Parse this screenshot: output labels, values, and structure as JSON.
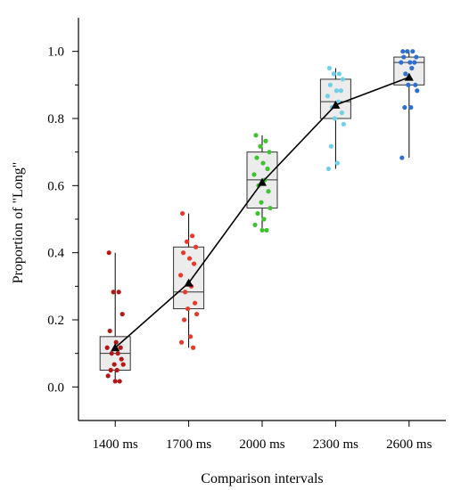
{
  "chart_data": {
    "type": "box",
    "xlabel": "Comparison intervals",
    "ylabel": "Proportion of \"Long\"",
    "ylim": [
      -0.1,
      1.1
    ],
    "yticks": [
      0.0,
      0.2,
      0.4,
      0.6,
      0.8,
      1.0
    ],
    "ytick_labels": [
      "0.0",
      "0.2",
      "0.4",
      "0.6",
      "0.8",
      "1.0"
    ],
    "categories": [
      "1400 ms",
      "1700 ms",
      "2000 ms",
      "2300 ms",
      "2600 ms"
    ],
    "grid": false,
    "boxes": [
      {
        "category": "1400 ms",
        "q1": 0.05,
        "median": 0.1,
        "q3": 0.15,
        "whisker_low": 0.017,
        "whisker_high": 0.4,
        "mean": 0.117,
        "color": "#b31818",
        "points": [
          0.4,
          0.283,
          0.283,
          0.217,
          0.167,
          0.133,
          0.117,
          0.117,
          0.1,
          0.1,
          0.083,
          0.067,
          0.067,
          0.05,
          0.05,
          0.033,
          0.017,
          0.017
        ]
      },
      {
        "category": "1700 ms",
        "q1": 0.233,
        "median": 0.283,
        "q3": 0.417,
        "whisker_low": 0.117,
        "whisker_high": 0.517,
        "mean": 0.31,
        "color": "#e8392b",
        "points": [
          0.517,
          0.45,
          0.433,
          0.417,
          0.4,
          0.383,
          0.367,
          0.333,
          0.3,
          0.283,
          0.25,
          0.233,
          0.217,
          0.2,
          0.15,
          0.133,
          0.117
        ]
      },
      {
        "category": "2000 ms",
        "q1": 0.533,
        "median": 0.617,
        "q3": 0.7,
        "whisker_low": 0.467,
        "whisker_high": 0.75,
        "mean": 0.61,
        "color": "#3ec42f",
        "points": [
          0.75,
          0.733,
          0.717,
          0.7,
          0.683,
          0.667,
          0.65,
          0.633,
          0.617,
          0.6,
          0.583,
          0.55,
          0.533,
          0.517,
          0.5,
          0.483,
          0.467,
          0.467
        ]
      },
      {
        "category": "2300 ms",
        "q1": 0.8,
        "median": 0.85,
        "q3": 0.917,
        "whisker_low": 0.65,
        "whisker_high": 0.95,
        "mean": 0.84,
        "color": "#6fd0e8",
        "points": [
          0.95,
          0.933,
          0.933,
          0.917,
          0.9,
          0.883,
          0.883,
          0.867,
          0.85,
          0.833,
          0.817,
          0.8,
          0.783,
          0.717,
          0.667,
          0.65
        ]
      },
      {
        "category": "2600 ms",
        "q1": 0.9,
        "median": 0.967,
        "q3": 0.983,
        "whisker_low": 0.683,
        "whisker_high": 1.0,
        "mean": 0.923,
        "color": "#2f6fd0",
        "points": [
          1.0,
          1.0,
          1.0,
          0.983,
          0.983,
          0.967,
          0.967,
          0.967,
          0.95,
          0.933,
          0.9,
          0.9,
          0.883,
          0.833,
          0.833,
          0.683
        ]
      }
    ],
    "mean_line": {
      "values": [
        0.117,
        0.31,
        0.61,
        0.84,
        0.923
      ],
      "marker": "triangle",
      "color": "#000000"
    }
  }
}
